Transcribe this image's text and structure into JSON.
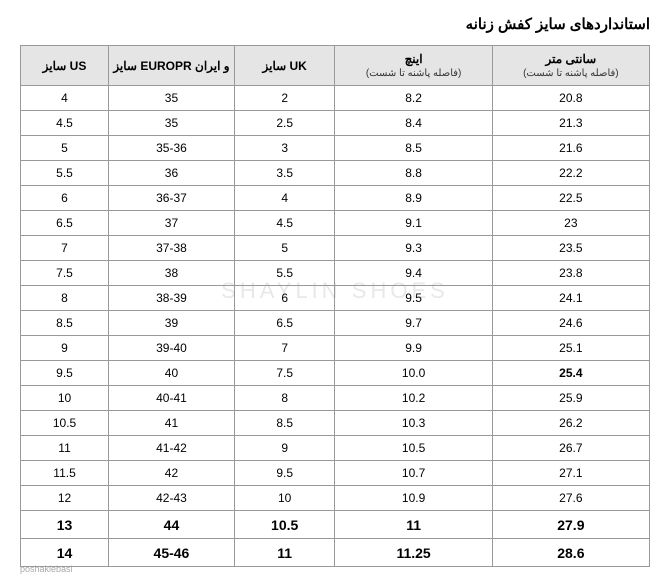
{
  "title": "استانداردهای سایز کفش زنانه",
  "columns": [
    {
      "main": "سایز US",
      "sub": ""
    },
    {
      "main": "سایز EUROPR و ایران",
      "sub": ""
    },
    {
      "main": "سایز UK",
      "sub": ""
    },
    {
      "main": "اینچ",
      "sub": "(فاصله پاشنه تا شست)"
    },
    {
      "main": "سانتی متر",
      "sub": "(فاصله پاشنه تا شست)"
    }
  ],
  "rows": [
    {
      "us": "4",
      "eu": "35",
      "uk": "2",
      "in": "8.2",
      "cm": "20.8",
      "big": false
    },
    {
      "us": "4.5",
      "eu": "35",
      "uk": "2.5",
      "in": "8.4",
      "cm": "21.3",
      "big": false
    },
    {
      "us": "5",
      "eu": "35-36",
      "uk": "3",
      "in": "8.5",
      "cm": "21.6",
      "big": false
    },
    {
      "us": "5.5",
      "eu": "36",
      "uk": "3.5",
      "in": "8.8",
      "cm": "22.2",
      "big": false
    },
    {
      "us": "6",
      "eu": "36-37",
      "uk": "4",
      "in": "8.9",
      "cm": "22.5",
      "big": false
    },
    {
      "us": "6.5",
      "eu": "37",
      "uk": "4.5",
      "in": "9.1",
      "cm": "23",
      "big": false
    },
    {
      "us": "7",
      "eu": "37-38",
      "uk": "5",
      "in": "9.3",
      "cm": "23.5",
      "big": false
    },
    {
      "us": "7.5",
      "eu": "38",
      "uk": "5.5",
      "in": "9.4",
      "cm": "23.8",
      "big": false
    },
    {
      "us": "8",
      "eu": "38-39",
      "uk": "6",
      "in": "9.5",
      "cm": "24.1",
      "big": false
    },
    {
      "us": "8.5",
      "eu": "39",
      "uk": "6.5",
      "in": "9.7",
      "cm": "24.6",
      "big": false
    },
    {
      "us": "9",
      "eu": "39-40",
      "uk": "7",
      "in": "9.9",
      "cm": "25.1",
      "big": false
    },
    {
      "us": "9.5",
      "eu": "40",
      "uk": "7.5",
      "in": "10.0",
      "cm": "25.4",
      "big": false,
      "cmBold": true
    },
    {
      "us": "10",
      "eu": "40-41",
      "uk": "8",
      "in": "10.2",
      "cm": "25.9",
      "big": false
    },
    {
      "us": "10.5",
      "eu": "41",
      "uk": "8.5",
      "in": "10.3",
      "cm": "26.2",
      "big": false
    },
    {
      "us": "11",
      "eu": "41-42",
      "uk": "9",
      "in": "10.5",
      "cm": "26.7",
      "big": false
    },
    {
      "us": "11.5",
      "eu": "42",
      "uk": "9.5",
      "in": "10.7",
      "cm": "27.1",
      "big": false
    },
    {
      "us": "12",
      "eu": "42-43",
      "uk": "10",
      "in": "10.9",
      "cm": "27.6",
      "big": false
    },
    {
      "us": "13",
      "eu": "44",
      "uk": "10.5",
      "in": "11",
      "cm": "27.9",
      "big": true
    },
    {
      "us": "14",
      "eu": "45-46",
      "uk": "11",
      "in": "11.25",
      "cm": "28.6",
      "big": true
    }
  ],
  "watermark_text": "poshaklebasi",
  "bg_watermark": "SHAYLIN SHOES",
  "colors": {
    "header_bg": "#e5e5e5",
    "border": "#999999",
    "text": "#000000",
    "watermark": "#aaaaaa",
    "bg_watermark": "#e8e8e8",
    "background": "#ffffff"
  }
}
